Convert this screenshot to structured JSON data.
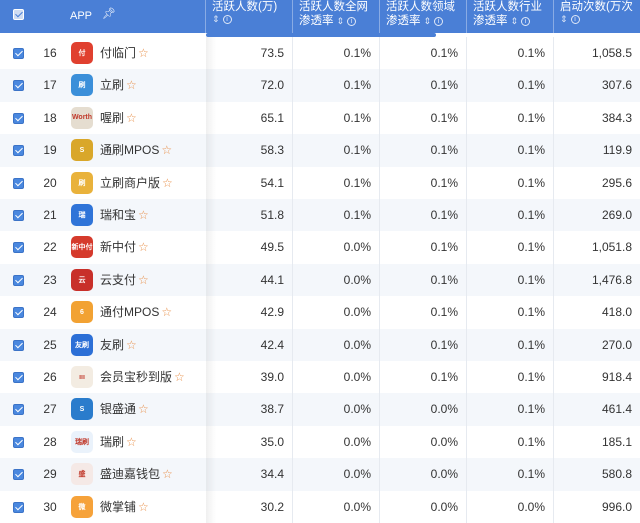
{
  "header": {
    "app_label": "APP",
    "pin_icon": "pin-icon",
    "columns": [
      {
        "line1": "活跃人数(万)",
        "line2": ""
      },
      {
        "line1": "活跃人数全网",
        "line2": "渗透率"
      },
      {
        "line1": "活跃人数领域",
        "line2": "渗透率"
      },
      {
        "line1": "活跃人数行业",
        "line2": "渗透率"
      },
      {
        "line1": "启动次数(万次",
        "line2": ""
      }
    ],
    "sort_icon": "⇕",
    "info_icon": "i"
  },
  "colors": {
    "header_bg": "#4a7fd6",
    "accent": "#4a88df",
    "star": "#e8904a"
  },
  "rows": [
    {
      "rank": "16",
      "name": "付临门",
      "icon_text": "付",
      "icon_color": "#e0402f",
      "active": "73.5",
      "net": "0.1%",
      "domain": "0.1%",
      "industry": "0.1%",
      "launches": "1,058.5"
    },
    {
      "rank": "17",
      "name": "立刷",
      "icon_text": "刷",
      "icon_color": "#3b8fd9",
      "active": "72.0",
      "net": "0.1%",
      "domain": "0.1%",
      "industry": "0.1%",
      "launches": "307.6"
    },
    {
      "rank": "18",
      "name": "喔刷",
      "icon_text": "Worth",
      "icon_color": "#e5ddd0",
      "active": "65.1",
      "net": "0.1%",
      "domain": "0.1%",
      "industry": "0.1%",
      "launches": "384.3"
    },
    {
      "rank": "19",
      "name": "通刷MPOS",
      "icon_text": "S",
      "icon_color": "#d9a72a",
      "active": "58.3",
      "net": "0.1%",
      "domain": "0.1%",
      "industry": "0.1%",
      "launches": "119.9"
    },
    {
      "rank": "20",
      "name": "立刷商户版",
      "icon_text": "刷",
      "icon_color": "#e9b23b",
      "active": "54.1",
      "net": "0.1%",
      "domain": "0.1%",
      "industry": "0.1%",
      "launches": "295.6"
    },
    {
      "rank": "21",
      "name": "瑞和宝",
      "icon_text": "瑞",
      "icon_color": "#2f74d8",
      "active": "51.8",
      "net": "0.1%",
      "domain": "0.1%",
      "industry": "0.1%",
      "launches": "269.0"
    },
    {
      "rank": "22",
      "name": "新中付",
      "icon_text": "新中付",
      "icon_color": "#d53a2c",
      "active": "49.5",
      "net": "0.0%",
      "domain": "0.1%",
      "industry": "0.1%",
      "launches": "1,051.8"
    },
    {
      "rank": "23",
      "name": "云支付",
      "icon_text": "云",
      "icon_color": "#c8302a",
      "active": "44.1",
      "net": "0.0%",
      "domain": "0.1%",
      "industry": "0.1%",
      "launches": "1,476.8"
    },
    {
      "rank": "24",
      "name": "通付MPOS",
      "icon_text": "6",
      "icon_color": "#f2a233",
      "active": "42.9",
      "net": "0.0%",
      "domain": "0.1%",
      "industry": "0.1%",
      "launches": "418.0"
    },
    {
      "rank": "25",
      "name": "友刷",
      "icon_text": "友刷",
      "icon_color": "#2c6fd6",
      "active": "42.4",
      "net": "0.0%",
      "domain": "0.1%",
      "industry": "0.1%",
      "launches": "270.0"
    },
    {
      "rank": "26",
      "name": "会员宝秒到版",
      "icon_text": "ııı",
      "icon_color": "#f3ece2",
      "active": "39.0",
      "net": "0.0%",
      "domain": "0.1%",
      "industry": "0.1%",
      "launches": "918.4"
    },
    {
      "rank": "27",
      "name": "银盛通",
      "icon_text": "S",
      "icon_color": "#2a7ccc",
      "active": "38.7",
      "net": "0.0%",
      "domain": "0.0%",
      "industry": "0.1%",
      "launches": "461.4"
    },
    {
      "rank": "28",
      "name": "瑞刷",
      "icon_text": "瑞刷",
      "icon_color": "#eaf2fb",
      "active": "35.0",
      "net": "0.0%",
      "domain": "0.0%",
      "industry": "0.1%",
      "launches": "185.1"
    },
    {
      "rank": "29",
      "name": "盛迪嘉钱包",
      "icon_text": "盛",
      "icon_color": "#f5e9e6",
      "active": "34.4",
      "net": "0.0%",
      "domain": "0.0%",
      "industry": "0.1%",
      "launches": "580.8"
    },
    {
      "rank": "30",
      "name": "微掌铺",
      "icon_text": "微",
      "icon_color": "#f6a23a",
      "active": "30.2",
      "net": "0.0%",
      "domain": "0.0%",
      "industry": "0.0%",
      "launches": "996.0"
    }
  ]
}
